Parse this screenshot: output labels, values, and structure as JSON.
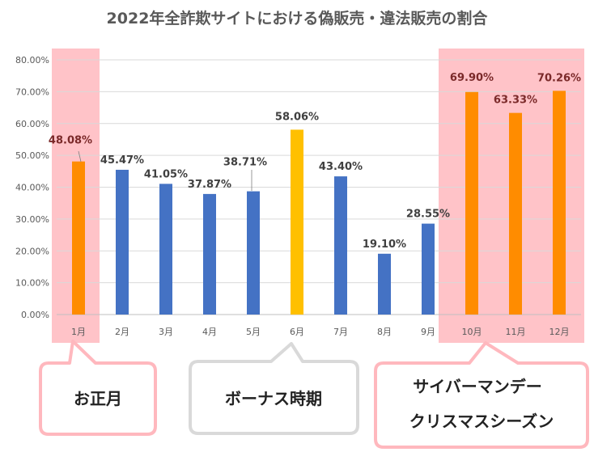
{
  "chart_data": {
    "type": "bar",
    "title": "2022年全詐欺サイトにおける偽販売・違法販売の割合",
    "categories": [
      "1月",
      "2月",
      "3月",
      "4月",
      "5月",
      "6月",
      "7月",
      "8月",
      "9月",
      "10月",
      "11月",
      "12月"
    ],
    "values": [
      48.08,
      45.47,
      41.05,
      37.87,
      38.71,
      58.06,
      43.4,
      19.1,
      28.55,
      69.9,
      63.33,
      70.26
    ],
    "data_labels": [
      "48.08%",
      "45.47%",
      "41.05%",
      "37.87%",
      "38.71%",
      "58.06%",
      "43.40%",
      "19.10%",
      "28.55%",
      "69.90%",
      "63.33%",
      "70.26%"
    ],
    "yticks": [
      "0.00%",
      "10.00%",
      "20.00%",
      "30.00%",
      "40.00%",
      "50.00%",
      "60.00%",
      "70.00%",
      "80.00%"
    ],
    "ylim": [
      0,
      80
    ],
    "grid": true,
    "xlabel": "",
    "ylabel": "",
    "bar_colors": [
      "#ff8c00",
      "#4472c4",
      "#4472c4",
      "#4472c4",
      "#4472c4",
      "#ffc000",
      "#4472c4",
      "#4472c4",
      "#4472c4",
      "#ff8c00",
      "#ff8c00",
      "#ff8c00"
    ],
    "highlight_color": "#ffb8be",
    "highlight_label_color": "#7b2a2a",
    "normal_label_color": "#404040"
  },
  "callouts": [
    {
      "id": "new-year",
      "lines": [
        "お正月"
      ]
    },
    {
      "id": "bonus",
      "lines": [
        "ボーナス時期"
      ]
    },
    {
      "id": "cyber-monday",
      "lines": [
        "サイバーマンデー",
        "クリスマスシーズン"
      ]
    }
  ]
}
